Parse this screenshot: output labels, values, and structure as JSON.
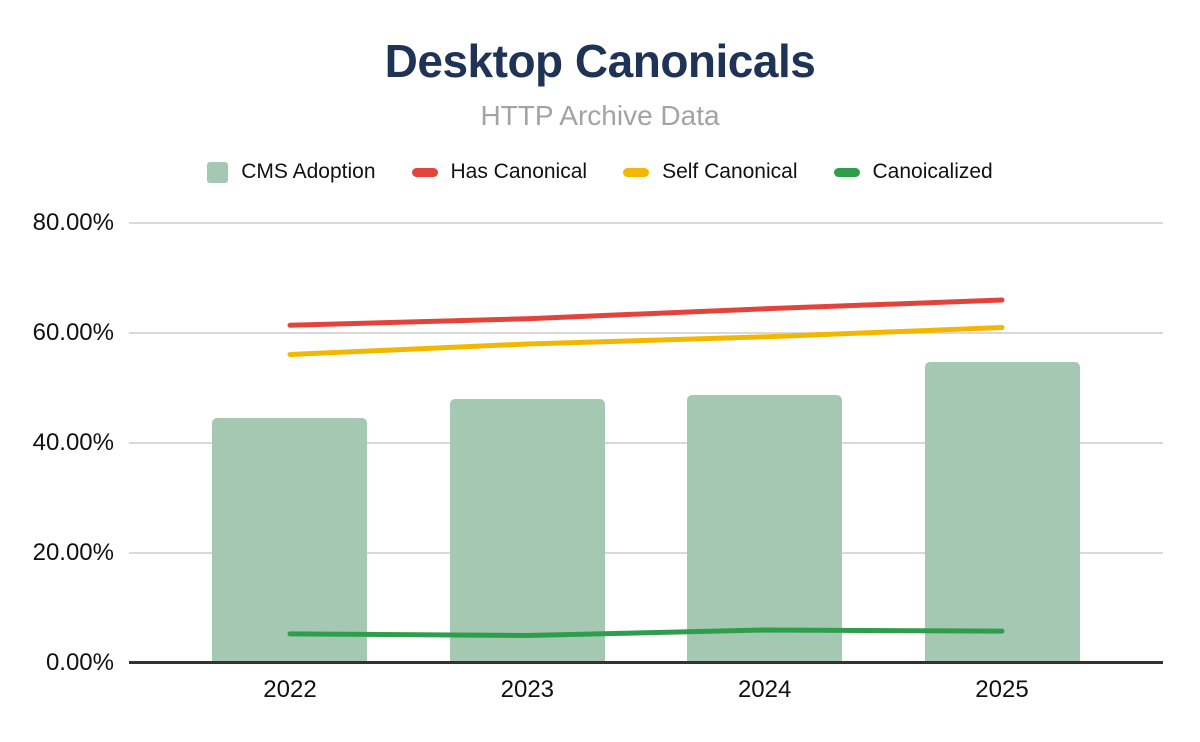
{
  "header": {
    "title": "Desktop Canonicals",
    "subtitle": "HTTP Archive Data"
  },
  "style": {
    "title_color": "#1e3356",
    "subtitle_color": "#a3a3a3",
    "grid_color": "#d9d9d9",
    "axis_color": "#333333",
    "label_color": "#111111",
    "background": "#ffffff"
  },
  "chart_data": {
    "type": "combo-bar-line",
    "title": "Desktop Canonicals",
    "subtitle": "HTTP Archive Data",
    "categories": [
      "2022",
      "2023",
      "2024",
      "2025"
    ],
    "series": [
      {
        "name": "CMS Adoption",
        "type": "bar",
        "color": "#a5c8b3",
        "values": [
          44.5,
          48.0,
          48.8,
          54.8
        ]
      },
      {
        "name": "Has Canonical",
        "type": "line",
        "color": "#e2443c",
        "values": [
          61.4,
          62.6,
          64.4,
          66.0
        ]
      },
      {
        "name": "Self Canonical",
        "type": "line",
        "color": "#f3b700",
        "values": [
          56.1,
          58.0,
          59.3,
          61.0
        ]
      },
      {
        "name": "Canoicalized",
        "type": "line",
        "color": "#2e9e4d",
        "values": [
          5.3,
          5.0,
          6.0,
          5.8
        ]
      }
    ],
    "xlabel": "",
    "ylabel": "",
    "ylim": [
      0,
      80
    ],
    "yticks": [
      "0.00%",
      "20.00%",
      "40.00%",
      "60.00%",
      "80.00%"
    ],
    "grid": true,
    "legend_position": "top",
    "units": "percent"
  }
}
